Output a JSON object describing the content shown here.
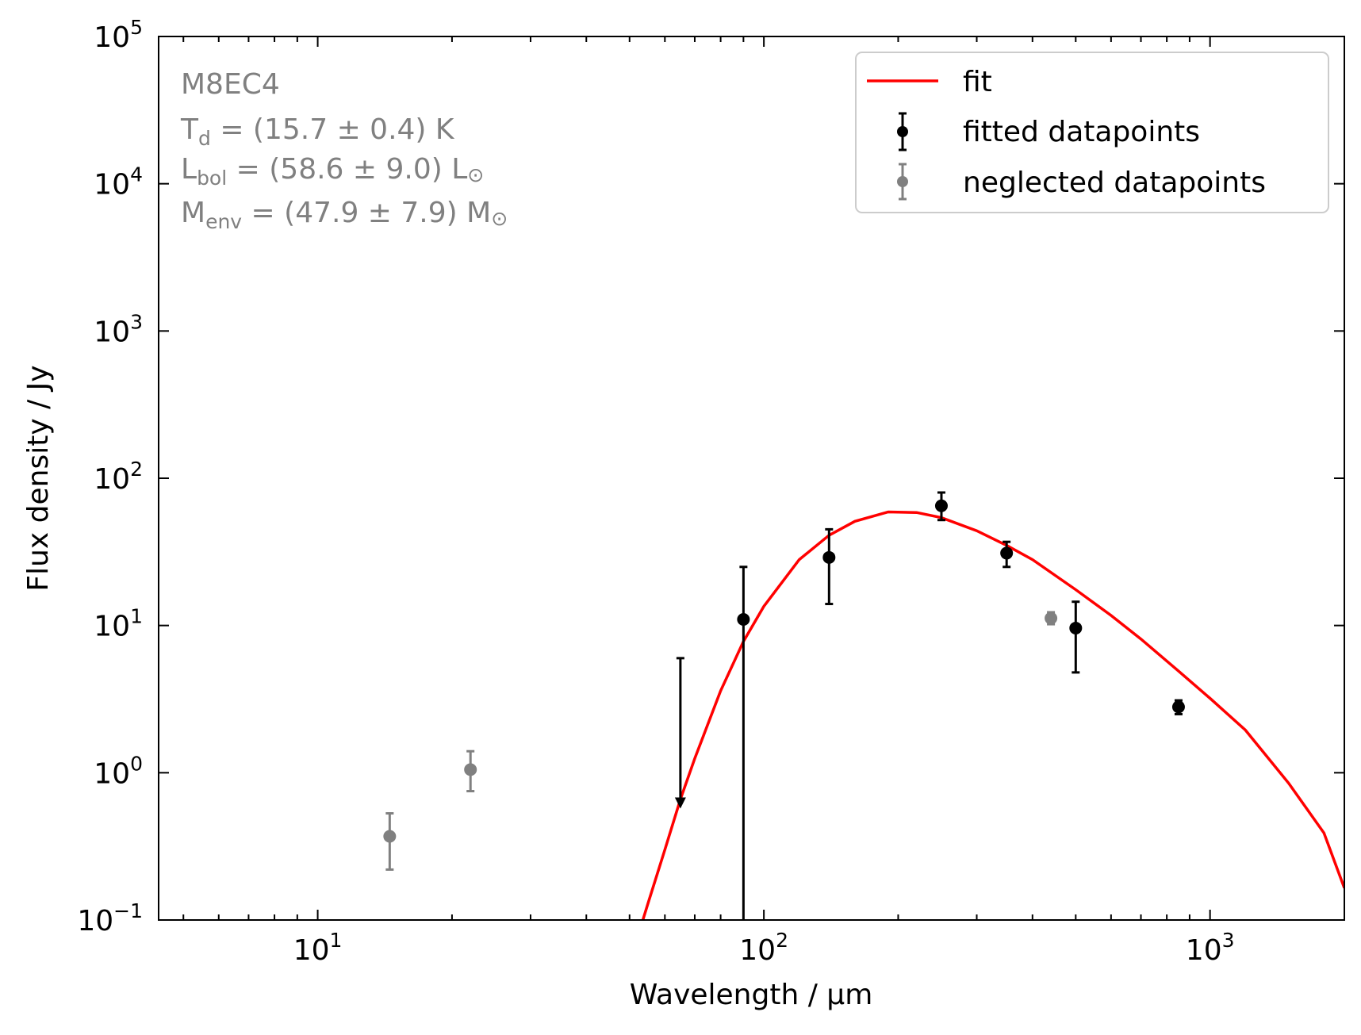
{
  "chart_data": {
    "type": "scatter",
    "xlabel": "Wavelength / μm",
    "ylabel": "Flux density / Jy",
    "xscale": "log",
    "yscale": "log",
    "xlim": [
      4.4,
      2000
    ],
    "ylim": [
      0.1,
      100000
    ],
    "x_ticks": [
      {
        "value": 10,
        "base": "10",
        "exp": "1"
      },
      {
        "value": 100,
        "base": "10",
        "exp": "2"
      },
      {
        "value": 1000,
        "base": "10",
        "exp": "3"
      }
    ],
    "y_ticks": [
      {
        "value": 0.1,
        "base": "10",
        "exp": "−1"
      },
      {
        "value": 1,
        "base": "10",
        "exp": "0"
      },
      {
        "value": 10,
        "base": "10",
        "exp": "1"
      },
      {
        "value": 100,
        "base": "10",
        "exp": "2"
      },
      {
        "value": 1000,
        "base": "10",
        "exp": "3"
      },
      {
        "value": 10000,
        "base": "10",
        "exp": "4"
      },
      {
        "value": 100000,
        "base": "10",
        "exp": "5"
      }
    ],
    "grid": false,
    "legend_position": "top-right",
    "annotation": {
      "name": "M8EC4",
      "td": {
        "symbol": "T",
        "sub": "d",
        "value": " = (15.7 ± 0.4) K"
      },
      "lbol": {
        "symbol": "L",
        "sub": "bol",
        "value": " = (58.6 ± 9.0) L",
        "unit_symbol": "⊙"
      },
      "menv": {
        "symbol": "M",
        "sub": "env",
        "value": " = (47.9 ± 7.9) M",
        "unit_symbol": "⊙"
      }
    },
    "series": [
      {
        "name": "fit",
        "kind": "line",
        "color": "#ff0000",
        "x": [
          52,
          55,
          60,
          65,
          70,
          80,
          90,
          100,
          120,
          140,
          160,
          190,
          220,
          250,
          300,
          350,
          400,
          500,
          600,
          700,
          850,
          1000,
          1200,
          1500,
          1800,
          2000
        ],
        "y": [
          0.075,
          0.13,
          0.3,
          0.66,
          1.25,
          3.6,
          7.8,
          13.5,
          28,
          41,
          51,
          59,
          58.5,
          54,
          44,
          35,
          28,
          17.5,
          11.7,
          8.1,
          4.9,
          3.2,
          1.95,
          0.85,
          0.39,
          0.165
        ]
      },
      {
        "name": "fitted datapoints",
        "kind": "errorbar",
        "color": "#000000",
        "points": [
          {
            "x": 90,
            "y": 11,
            "ylo": 0.1,
            "yhi": 25
          },
          {
            "x": 140,
            "y": 29,
            "ylo": 14,
            "yhi": 45
          },
          {
            "x": 250,
            "y": 65,
            "ylo": 52,
            "yhi": 80
          },
          {
            "x": 350,
            "y": 31,
            "ylo": 25,
            "yhi": 37
          },
          {
            "x": 500,
            "y": 9.6,
            "ylo": 4.8,
            "yhi": 14.5
          },
          {
            "x": 850,
            "y": 2.8,
            "ylo": 2.5,
            "yhi": 3.1
          }
        ],
        "upper_limits": [
          {
            "x": 65,
            "yhi": 6,
            "y": 0.6
          }
        ]
      },
      {
        "name": "neglected datapoints",
        "kind": "errorbar",
        "color": "#808080",
        "points": [
          {
            "x": 14.5,
            "y": 0.37,
            "ylo": 0.22,
            "yhi": 0.53
          },
          {
            "x": 22,
            "y": 1.05,
            "ylo": 0.75,
            "yhi": 1.4
          },
          {
            "x": 440,
            "y": 11.2,
            "ylo": 10.2,
            "yhi": 12.3
          }
        ]
      }
    ]
  }
}
